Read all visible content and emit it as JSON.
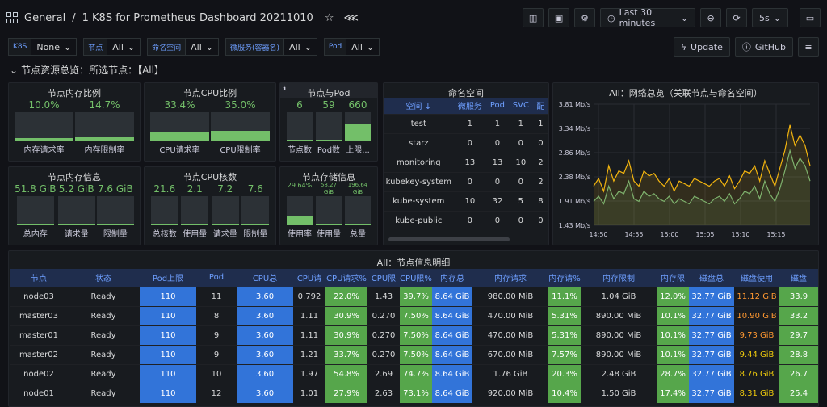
{
  "header": {
    "breadcrumb": "General",
    "separator": "/",
    "title": "1 K8S for Prometheus Dashboard 20211010",
    "time_range": "Last 30 minutes",
    "refresh": "5s"
  },
  "variables": [
    {
      "label": "K8S",
      "value": "None"
    },
    {
      "label": "节点",
      "value": "All"
    },
    {
      "label": "命名空间",
      "value": "All"
    },
    {
      "label": "微服务(容器名)",
      "value": "All"
    },
    {
      "label": "Pod",
      "value": "All"
    }
  ],
  "links": {
    "update": "Update",
    "github": "GitHub"
  },
  "row_title": "节点资源总览：所选节点：【All】",
  "mem_ratio": {
    "title": "节点内存比例",
    "items": [
      {
        "value": "10.0%",
        "caption": "内存请求率",
        "fraction": 0.1
      },
      {
        "value": "14.7%",
        "caption": "内存限制率",
        "fraction": 0.147
      }
    ]
  },
  "cpu_ratio": {
    "title": "节点CPU比例",
    "items": [
      {
        "value": "33.4%",
        "caption": "CPU请求率",
        "fraction": 0.334
      },
      {
        "value": "35.0%",
        "caption": "CPU限制率",
        "fraction": 0.35
      }
    ]
  },
  "node_pod": {
    "title": "节点与Pod",
    "items": [
      {
        "value": "6",
        "caption": "节点数",
        "fraction": 0.0
      },
      {
        "value": "59",
        "caption": "Pod数",
        "fraction": 0.0
      },
      {
        "value": "660",
        "caption": "上限...",
        "fraction": 0.62
      }
    ]
  },
  "mem_info": {
    "title": "节点内存信息",
    "items": [
      {
        "value": "51.8 GiB",
        "caption": "总内存",
        "fraction": 0.0
      },
      {
        "value": "5.2 GiB",
        "caption": "请求量",
        "fraction": 0.0
      },
      {
        "value": "7.6 GiB",
        "caption": "限制量",
        "fraction": 0.0
      }
    ]
  },
  "cpu_cores": {
    "title": "节点CPU核数",
    "items": [
      {
        "value": "21.6",
        "caption": "总核数",
        "fraction": 0.0
      },
      {
        "value": "2.1",
        "caption": "使用量",
        "fraction": 0.0
      },
      {
        "value": "7.2",
        "caption": "请求量",
        "fraction": 0.0
      },
      {
        "value": "7.6",
        "caption": "限制量",
        "fraction": 0.0
      }
    ]
  },
  "storage": {
    "title": "节点存储信息",
    "items": [
      {
        "value": "29.64%",
        "caption": "使用率",
        "fraction": 0.3
      },
      {
        "value": "58.27 GiB",
        "caption": "使用量",
        "fraction": 0.0
      },
      {
        "value": "196.64 GiB",
        "caption": "总量",
        "fraction": 0.0
      }
    ]
  },
  "namespaces": {
    "title": "命名空间",
    "headers": [
      "空间 ↓",
      "微服务",
      "Pod",
      "SVC",
      "配"
    ],
    "rows": [
      [
        "test",
        "1",
        "1",
        "1",
        "1"
      ],
      [
        "starz",
        "0",
        "0",
        "0",
        "0"
      ],
      [
        "monitoring",
        "13",
        "13",
        "10",
        "2"
      ],
      [
        "kubekey-system",
        "0",
        "0",
        "0",
        "2"
      ],
      [
        "kube-system",
        "10",
        "32",
        "5",
        "8"
      ],
      [
        "kube-public",
        "0",
        "0",
        "0",
        "0"
      ]
    ]
  },
  "chart_data": {
    "type": "line",
    "title": "All：网络总览（关联节点与命名空间）",
    "x_ticks": [
      "14:50",
      "14:55",
      "15:00",
      "15:05",
      "15:10",
      "15:15"
    ],
    "y_ticks": [
      "1.43 Mb/s",
      "1.91 Mb/s",
      "2.38 Mb/s",
      "2.86 Mb/s",
      "3.34 Mb/s",
      "3.81 Mb/s"
    ],
    "ylim": [
      1.43,
      3.81
    ],
    "series": [
      {
        "color": "#f2b40f",
        "values": [
          2.2,
          2.35,
          2.1,
          2.6,
          2.3,
          2.5,
          2.45,
          2.7,
          2.3,
          2.2,
          2.5,
          2.4,
          2.45,
          2.3,
          2.2,
          2.35,
          2.1,
          2.3,
          2.25,
          2.2,
          2.35,
          2.3,
          2.25,
          2.2,
          2.3,
          2.35,
          2.2,
          2.4,
          2.15,
          2.3,
          2.5,
          2.45,
          2.6,
          2.3,
          2.7,
          2.45,
          2.2,
          2.55,
          2.9,
          3.4,
          3.0,
          3.2,
          3.0,
          2.6
        ]
      },
      {
        "color": "#7eb26d",
        "values": [
          1.9,
          2.0,
          1.85,
          2.2,
          1.95,
          2.1,
          2.05,
          2.3,
          1.95,
          1.9,
          2.1,
          2.0,
          2.05,
          1.95,
          1.9,
          2.0,
          1.85,
          1.95,
          1.9,
          1.85,
          2.0,
          1.95,
          1.9,
          1.85,
          1.95,
          2.0,
          1.9,
          2.05,
          1.85,
          1.95,
          2.1,
          2.05,
          2.2,
          1.95,
          2.3,
          2.05,
          1.9,
          2.15,
          2.5,
          2.9,
          2.55,
          2.75,
          2.6,
          2.3
        ]
      }
    ]
  },
  "details": {
    "title": "All：节点信息明细",
    "headers": [
      "节点",
      "状态",
      "Pod上限",
      "Pod",
      "CPU总",
      "CPU请",
      "CPU请求%",
      "CPU限",
      "CPU限%",
      "内存总",
      "内存请求",
      "内存请%",
      "内存限制",
      "内存限",
      "磁盘总",
      "磁盘使用",
      "磁盘"
    ],
    "rows": [
      [
        "node03",
        "Ready",
        "110",
        "11",
        "3.60",
        "0.792",
        "22.0%",
        "1.43",
        "39.7%",
        "8.64 GiB",
        "980.00 MiB",
        "11.1%",
        "1.04 GiB",
        "12.0%",
        "32.77 GiB",
        "11.12 GiB",
        "33.9"
      ],
      [
        "master03",
        "Ready",
        "110",
        "8",
        "3.60",
        "1.11",
        "30.9%",
        "0.270",
        "7.50%",
        "8.64 GiB",
        "470.00 MiB",
        "5.31%",
        "890.00 MiB",
        "10.1%",
        "32.77 GiB",
        "10.90 GiB",
        "33.2"
      ],
      [
        "master01",
        "Ready",
        "110",
        "9",
        "3.60",
        "1.11",
        "30.9%",
        "0.270",
        "7.50%",
        "8.64 GiB",
        "470.00 MiB",
        "5.31%",
        "890.00 MiB",
        "10.1%",
        "32.77 GiB",
        "9.73 GiB",
        "29.7"
      ],
      [
        "master02",
        "Ready",
        "110",
        "9",
        "3.60",
        "1.21",
        "33.7%",
        "0.270",
        "7.50%",
        "8.64 GiB",
        "670.00 MiB",
        "7.57%",
        "890.00 MiB",
        "10.1%",
        "32.77 GiB",
        "9.44 GiB",
        "28.8"
      ],
      [
        "node02",
        "Ready",
        "110",
        "10",
        "3.60",
        "1.97",
        "54.8%",
        "2.69",
        "74.7%",
        "8.64 GiB",
        "1.76 GiB",
        "20.3%",
        "2.48 GiB",
        "28.7%",
        "32.77 GiB",
        "8.76 GiB",
        "26.7"
      ],
      [
        "node01",
        "Ready",
        "110",
        "12",
        "3.60",
        "1.01",
        "27.9%",
        "2.63",
        "73.1%",
        "8.64 GiB",
        "920.00 MiB",
        "10.4%",
        "1.50 GiB",
        "17.4%",
        "32.77 GiB",
        "8.31 GiB",
        "25.4"
      ]
    ]
  }
}
